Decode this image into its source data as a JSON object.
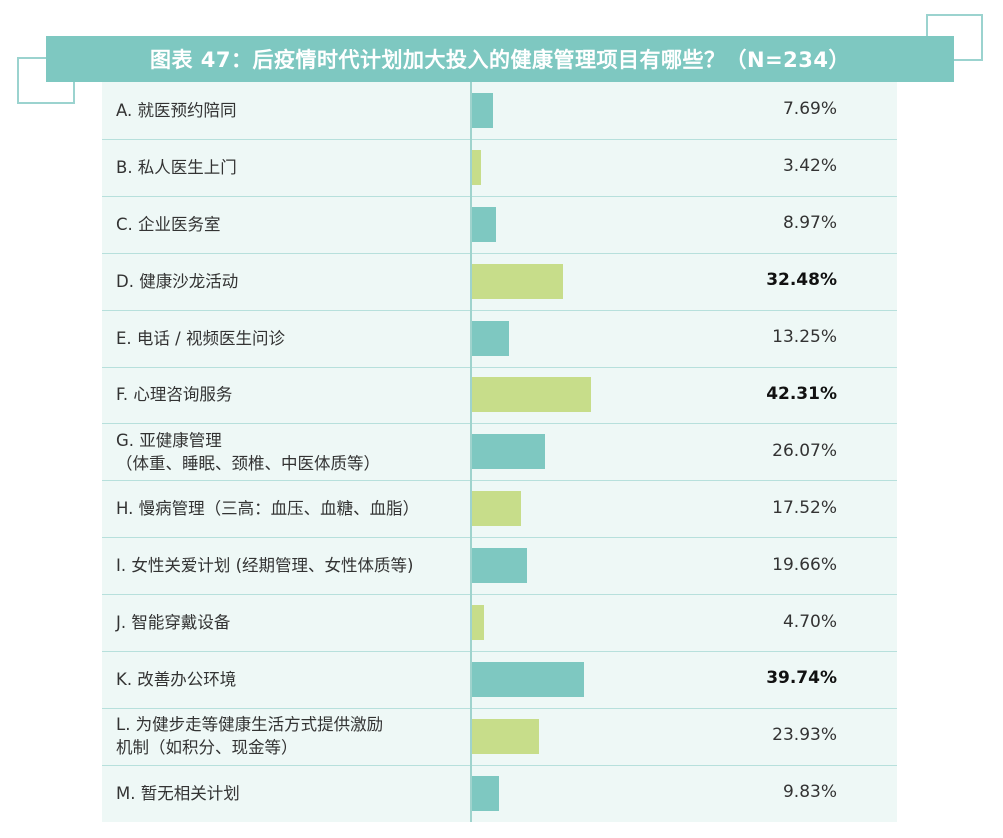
{
  "colors": {
    "banner": "#7ec8c1",
    "panel": "#eef8f6",
    "bar_teal": "#7ec8c1",
    "bar_green": "#c7dd8a",
    "deco_border": "#9bd3cf"
  },
  "chart_data": {
    "type": "bar",
    "orientation": "horizontal",
    "title": "图表 47：后疫情时代计划加大投入的健康管理项目有哪些？（N=234）",
    "xlim": [
      0,
      100
    ],
    "grid": false,
    "legend": "none",
    "categories": [
      "A. 就医预约陪同",
      "B. 私人医生上门",
      "C. 企业医务室",
      "D. 健康沙龙活动",
      "E. 电话 / 视频医生问诊",
      "F. 心理咨询服务",
      "G. 亚健康管理\n（体重、睡眠、颈椎、中医体质等）",
      "H. 慢病管理（三高：血压、血糖、血脂）",
      "I. 女性关爱计划 (经期管理、女性体质等)",
      "J. 智能穿戴设备",
      "K. 改善办公环境",
      "L. 为健步走等健康生活方式提供激励\n机制（如积分、现金等）",
      "M. 暂无相关计划"
    ],
    "values": [
      7.69,
      3.42,
      8.97,
      32.48,
      13.25,
      42.31,
      26.07,
      17.52,
      19.66,
      4.7,
      39.74,
      23.93,
      9.83
    ],
    "value_labels": [
      "7.69%",
      "3.42%",
      "8.97%",
      "32.48%",
      "13.25%",
      "42.31%",
      "26.07%",
      "17.52%",
      "19.66%",
      "4.70%",
      "39.74%",
      "23.93%",
      "9.83%"
    ],
    "bold": [
      false,
      false,
      false,
      true,
      false,
      true,
      false,
      false,
      false,
      false,
      true,
      false,
      false
    ],
    "bar_colors": [
      "#7ec8c1",
      "#c7dd8a",
      "#7ec8c1",
      "#c7dd8a",
      "#7ec8c1",
      "#c7dd8a",
      "#7ec8c1",
      "#c7dd8a",
      "#7ec8c1",
      "#c7dd8a",
      "#7ec8c1",
      "#c7dd8a",
      "#7ec8c1"
    ]
  }
}
